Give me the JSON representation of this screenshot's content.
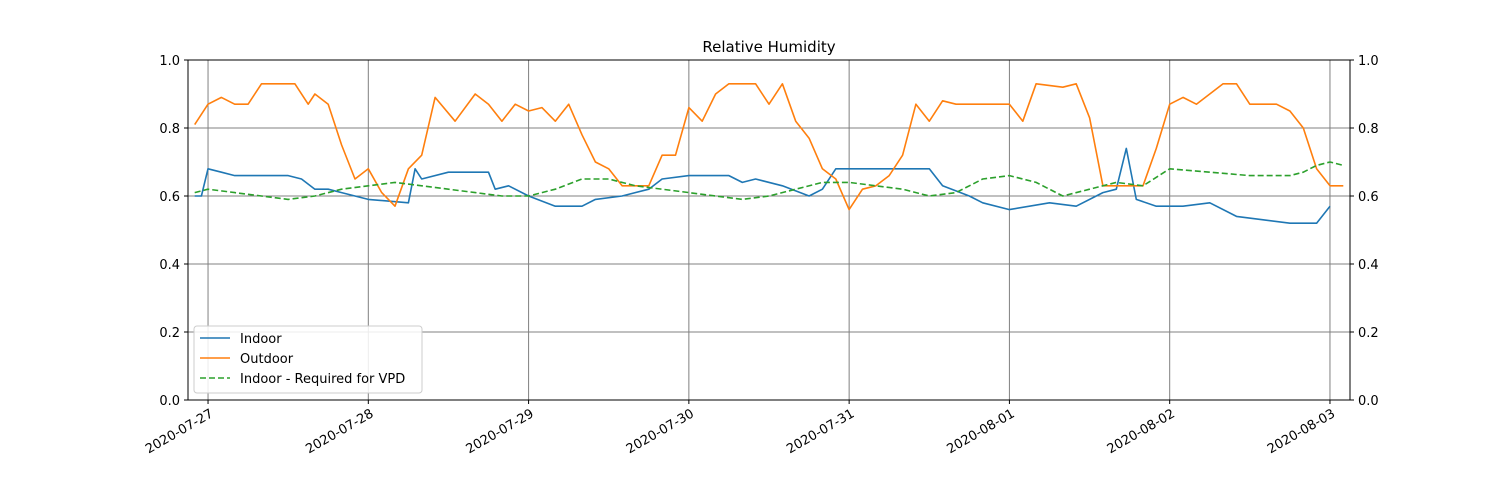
{
  "chart_data": {
    "type": "line",
    "title": "Relative Humidity",
    "xlabel": "",
    "ylabel": "",
    "ylim": [
      0,
      1
    ],
    "xlim": [
      "2020-07-26T21:00",
      "2020-08-03T03:00"
    ],
    "grid": true,
    "legend_position": "lower-left",
    "y_ticks": [
      "0.0",
      "0.2",
      "0.4",
      "0.6",
      "0.8",
      "1.0"
    ],
    "x_ticks": [
      "2020-07-27",
      "2020-07-28",
      "2020-07-29",
      "2020-07-30",
      "2020-07-31",
      "2020-08-01",
      "2020-08-02",
      "2020-08-03"
    ],
    "series": [
      {
        "name": "Indoor",
        "color": "#1f77b4",
        "style": "solid",
        "points": [
          [
            "2020-07-26T22:00",
            0.6
          ],
          [
            "2020-07-26T23:00",
            0.6
          ],
          [
            "2020-07-27T00:00",
            0.68
          ],
          [
            "2020-07-27T02:00",
            0.67
          ],
          [
            "2020-07-27T04:00",
            0.66
          ],
          [
            "2020-07-27T08:00",
            0.66
          ],
          [
            "2020-07-27T12:00",
            0.66
          ],
          [
            "2020-07-27T14:00",
            0.65
          ],
          [
            "2020-07-27T16:00",
            0.62
          ],
          [
            "2020-07-27T18:00",
            0.62
          ],
          [
            "2020-07-27T20:00",
            0.61
          ],
          [
            "2020-07-28T00:00",
            0.59
          ],
          [
            "2020-07-28T06:00",
            0.58
          ],
          [
            "2020-07-28T07:00",
            0.68
          ],
          [
            "2020-07-28T08:00",
            0.65
          ],
          [
            "2020-07-28T12:00",
            0.67
          ],
          [
            "2020-07-28T18:00",
            0.67
          ],
          [
            "2020-07-28T19:00",
            0.62
          ],
          [
            "2020-07-28T21:00",
            0.63
          ],
          [
            "2020-07-29T00:00",
            0.6
          ],
          [
            "2020-07-29T04:00",
            0.57
          ],
          [
            "2020-07-29T08:00",
            0.57
          ],
          [
            "2020-07-29T10:00",
            0.59
          ],
          [
            "2020-07-29T14:00",
            0.6
          ],
          [
            "2020-07-29T18:00",
            0.62
          ],
          [
            "2020-07-29T20:00",
            0.65
          ],
          [
            "2020-07-30T00:00",
            0.66
          ],
          [
            "2020-07-30T06:00",
            0.66
          ],
          [
            "2020-07-30T08:00",
            0.64
          ],
          [
            "2020-07-30T10:00",
            0.65
          ],
          [
            "2020-07-30T14:00",
            0.63
          ],
          [
            "2020-07-30T18:00",
            0.6
          ],
          [
            "2020-07-30T20:00",
            0.62
          ],
          [
            "2020-07-30T22:00",
            0.68
          ],
          [
            "2020-07-31T06:00",
            0.68
          ],
          [
            "2020-07-31T12:00",
            0.68
          ],
          [
            "2020-07-31T14:00",
            0.63
          ],
          [
            "2020-07-31T18:00",
            0.6
          ],
          [
            "2020-07-31T20:00",
            0.58
          ],
          [
            "2020-08-01T00:00",
            0.56
          ],
          [
            "2020-08-01T06:00",
            0.58
          ],
          [
            "2020-08-01T10:00",
            0.57
          ],
          [
            "2020-08-01T14:00",
            0.61
          ],
          [
            "2020-08-01T16:00",
            0.62
          ],
          [
            "2020-08-01T17:30",
            0.74
          ],
          [
            "2020-08-01T19:00",
            0.59
          ],
          [
            "2020-08-01T22:00",
            0.57
          ],
          [
            "2020-08-02T02:00",
            0.57
          ],
          [
            "2020-08-02T06:00",
            0.58
          ],
          [
            "2020-08-02T10:00",
            0.54
          ],
          [
            "2020-08-02T14:00",
            0.53
          ],
          [
            "2020-08-02T18:00",
            0.52
          ],
          [
            "2020-08-02T22:00",
            0.52
          ],
          [
            "2020-08-03T00:00",
            0.57
          ]
        ]
      },
      {
        "name": "Outdoor",
        "color": "#ff7f0e",
        "style": "solid",
        "points": [
          [
            "2020-07-26T22:00",
            0.81
          ],
          [
            "2020-07-27T00:00",
            0.87
          ],
          [
            "2020-07-27T02:00",
            0.89
          ],
          [
            "2020-07-27T04:00",
            0.87
          ],
          [
            "2020-07-27T06:00",
            0.87
          ],
          [
            "2020-07-27T08:00",
            0.93
          ],
          [
            "2020-07-27T11:00",
            0.93
          ],
          [
            "2020-07-27T13:00",
            0.93
          ],
          [
            "2020-07-27T15:00",
            0.87
          ],
          [
            "2020-07-27T16:00",
            0.9
          ],
          [
            "2020-07-27T18:00",
            0.87
          ],
          [
            "2020-07-27T20:00",
            0.75
          ],
          [
            "2020-07-27T22:00",
            0.65
          ],
          [
            "2020-07-28T00:00",
            0.68
          ],
          [
            "2020-07-28T02:00",
            0.61
          ],
          [
            "2020-07-28T04:00",
            0.57
          ],
          [
            "2020-07-28T06:00",
            0.68
          ],
          [
            "2020-07-28T08:00",
            0.72
          ],
          [
            "2020-07-28T10:00",
            0.89
          ],
          [
            "2020-07-28T13:00",
            0.82
          ],
          [
            "2020-07-28T16:00",
            0.9
          ],
          [
            "2020-07-28T18:00",
            0.87
          ],
          [
            "2020-07-28T20:00",
            0.82
          ],
          [
            "2020-07-28T22:00",
            0.87
          ],
          [
            "2020-07-29T00:00",
            0.85
          ],
          [
            "2020-07-29T02:00",
            0.86
          ],
          [
            "2020-07-29T04:00",
            0.82
          ],
          [
            "2020-07-29T06:00",
            0.87
          ],
          [
            "2020-07-29T08:00",
            0.78
          ],
          [
            "2020-07-29T10:00",
            0.7
          ],
          [
            "2020-07-29T12:00",
            0.68
          ],
          [
            "2020-07-29T14:00",
            0.63
          ],
          [
            "2020-07-29T18:00",
            0.63
          ],
          [
            "2020-07-29T20:00",
            0.72
          ],
          [
            "2020-07-29T22:00",
            0.72
          ],
          [
            "2020-07-30T00:00",
            0.86
          ],
          [
            "2020-07-30T02:00",
            0.82
          ],
          [
            "2020-07-30T04:00",
            0.9
          ],
          [
            "2020-07-30T06:00",
            0.93
          ],
          [
            "2020-07-30T10:00",
            0.93
          ],
          [
            "2020-07-30T12:00",
            0.87
          ],
          [
            "2020-07-30T14:00",
            0.93
          ],
          [
            "2020-07-30T16:00",
            0.82
          ],
          [
            "2020-07-30T18:00",
            0.77
          ],
          [
            "2020-07-30T20:00",
            0.68
          ],
          [
            "2020-07-30T22:00",
            0.65
          ],
          [
            "2020-07-31T00:00",
            0.56
          ],
          [
            "2020-07-31T02:00",
            0.62
          ],
          [
            "2020-07-31T04:00",
            0.63
          ],
          [
            "2020-07-31T06:00",
            0.66
          ],
          [
            "2020-07-31T08:00",
            0.72
          ],
          [
            "2020-07-31T10:00",
            0.87
          ],
          [
            "2020-07-31T12:00",
            0.82
          ],
          [
            "2020-07-31T14:00",
            0.88
          ],
          [
            "2020-07-31T16:00",
            0.87
          ],
          [
            "2020-07-31T20:00",
            0.87
          ],
          [
            "2020-08-01T00:00",
            0.87
          ],
          [
            "2020-08-01T02:00",
            0.82
          ],
          [
            "2020-08-01T04:00",
            0.93
          ],
          [
            "2020-08-01T08:00",
            0.92
          ],
          [
            "2020-08-01T10:00",
            0.93
          ],
          [
            "2020-08-01T12:00",
            0.83
          ],
          [
            "2020-08-01T14:00",
            0.63
          ],
          [
            "2020-08-01T18:00",
            0.63
          ],
          [
            "2020-08-01T20:00",
            0.63
          ],
          [
            "2020-08-01T22:00",
            0.74
          ],
          [
            "2020-08-02T00:00",
            0.87
          ],
          [
            "2020-08-02T02:00",
            0.89
          ],
          [
            "2020-08-02T04:00",
            0.87
          ],
          [
            "2020-08-02T08:00",
            0.93
          ],
          [
            "2020-08-02T10:00",
            0.93
          ],
          [
            "2020-08-02T12:00",
            0.87
          ],
          [
            "2020-08-02T14:00",
            0.87
          ],
          [
            "2020-08-02T16:00",
            0.87
          ],
          [
            "2020-08-02T18:00",
            0.85
          ],
          [
            "2020-08-02T20:00",
            0.8
          ],
          [
            "2020-08-02T22:00",
            0.68
          ],
          [
            "2020-08-03T00:00",
            0.63
          ],
          [
            "2020-08-03T02:00",
            0.63
          ]
        ]
      },
      {
        "name": "Indoor - Required for VPD",
        "color": "#2ca02c",
        "style": "dashed",
        "points": [
          [
            "2020-07-26T22:00",
            0.61
          ],
          [
            "2020-07-27T00:00",
            0.62
          ],
          [
            "2020-07-27T04:00",
            0.61
          ],
          [
            "2020-07-27T08:00",
            0.6
          ],
          [
            "2020-07-27T12:00",
            0.59
          ],
          [
            "2020-07-27T16:00",
            0.6
          ],
          [
            "2020-07-27T20:00",
            0.62
          ],
          [
            "2020-07-28T00:00",
            0.63
          ],
          [
            "2020-07-28T04:00",
            0.64
          ],
          [
            "2020-07-28T08:00",
            0.63
          ],
          [
            "2020-07-28T12:00",
            0.62
          ],
          [
            "2020-07-28T16:00",
            0.61
          ],
          [
            "2020-07-28T20:00",
            0.6
          ],
          [
            "2020-07-29T00:00",
            0.6
          ],
          [
            "2020-07-29T04:00",
            0.62
          ],
          [
            "2020-07-29T08:00",
            0.65
          ],
          [
            "2020-07-29T12:00",
            0.65
          ],
          [
            "2020-07-29T16:00",
            0.63
          ],
          [
            "2020-07-29T20:00",
            0.62
          ],
          [
            "2020-07-30T00:00",
            0.61
          ],
          [
            "2020-07-30T04:00",
            0.6
          ],
          [
            "2020-07-30T08:00",
            0.59
          ],
          [
            "2020-07-30T12:00",
            0.6
          ],
          [
            "2020-07-30T16:00",
            0.62
          ],
          [
            "2020-07-30T20:00",
            0.64
          ],
          [
            "2020-07-31T00:00",
            0.64
          ],
          [
            "2020-07-31T04:00",
            0.63
          ],
          [
            "2020-07-31T08:00",
            0.62
          ],
          [
            "2020-07-31T12:00",
            0.6
          ],
          [
            "2020-07-31T16:00",
            0.61
          ],
          [
            "2020-07-31T20:00",
            0.65
          ],
          [
            "2020-08-01T00:00",
            0.66
          ],
          [
            "2020-08-01T04:00",
            0.64
          ],
          [
            "2020-08-01T08:00",
            0.6
          ],
          [
            "2020-08-01T12:00",
            0.62
          ],
          [
            "2020-08-01T16:00",
            0.64
          ],
          [
            "2020-08-01T20:00",
            0.63
          ],
          [
            "2020-08-02T00:00",
            0.68
          ],
          [
            "2020-08-02T06:00",
            0.67
          ],
          [
            "2020-08-02T12:00",
            0.66
          ],
          [
            "2020-08-02T18:00",
            0.66
          ],
          [
            "2020-08-02T20:00",
            0.67
          ],
          [
            "2020-08-02T22:00",
            0.69
          ],
          [
            "2020-08-03T00:00",
            0.7
          ],
          [
            "2020-08-03T02:00",
            0.69
          ]
        ]
      }
    ]
  }
}
